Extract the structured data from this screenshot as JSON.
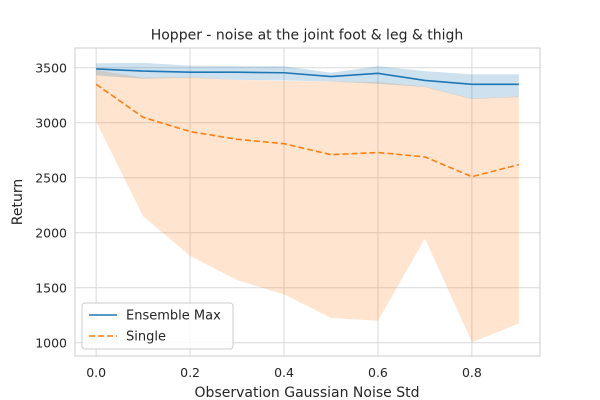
{
  "chart_data": {
    "type": "line",
    "title": "Hopper - noise at the joint foot & leg & thigh",
    "xlabel": "Observation Gaussian Noise Std",
    "ylabel": "Return",
    "xlim": [
      -0.045,
      0.945
    ],
    "ylim": [
      880,
      3680
    ],
    "xticks": [
      0.0,
      0.2,
      0.4,
      0.6,
      0.8
    ],
    "xtick_labels": [
      "0.0",
      "0.2",
      "0.4",
      "0.6",
      "0.8"
    ],
    "yticks": [
      1000,
      1500,
      2000,
      2500,
      3000,
      3500
    ],
    "yticks_labels": [
      "1000",
      "1500",
      "2000",
      "2500",
      "3000",
      "3500"
    ],
    "grid": true,
    "legend_position": "lower-left",
    "x": [
      0.0,
      0.1,
      0.2,
      0.3,
      0.4,
      0.5,
      0.6,
      0.7,
      0.8,
      0.9
    ],
    "series": [
      {
        "name": "Ensemble Max",
        "color": "#1f77b4",
        "linestyle": "solid",
        "values": [
          3490,
          3470,
          3460,
          3460,
          3455,
          3420,
          3450,
          3385,
          3350,
          3350
        ],
        "lower": [
          3430,
          3400,
          3410,
          3390,
          3385,
          3375,
          3355,
          3325,
          3215,
          3235
        ],
        "upper": [
          3540,
          3545,
          3520,
          3515,
          3515,
          3455,
          3515,
          3470,
          3440,
          3440
        ]
      },
      {
        "name": "Single",
        "color": "#ff7f0e",
        "linestyle": "dashed",
        "values": [
          3350,
          3050,
          2920,
          2850,
          2810,
          2710,
          2730,
          2690,
          2510,
          2620
        ],
        "lower": [
          3010,
          2150,
          1790,
          1570,
          1440,
          1225,
          1200,
          1950,
          1005,
          1175
        ],
        "upper": [
          3480,
          3410,
          3415,
          3390,
          3380,
          3375,
          3370,
          3330,
          3220,
          3240
        ]
      }
    ]
  }
}
